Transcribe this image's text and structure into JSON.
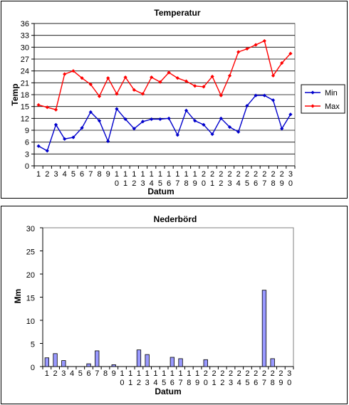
{
  "chart_data": [
    {
      "type": "line",
      "title": "Temperatur",
      "xlabel": "Datum",
      "ylabel": "Temp",
      "ylim": [
        0,
        36
      ],
      "yticks": [
        0,
        3,
        6,
        9,
        12,
        15,
        18,
        21,
        24,
        27,
        30,
        33,
        36
      ],
      "grid": true,
      "legend_position": "right",
      "categories": [
        "1",
        "2",
        "3",
        "4",
        "5",
        "6",
        "7",
        "8",
        "9",
        "10",
        "11",
        "12",
        "13",
        "14",
        "15",
        "16",
        "17",
        "18",
        "19",
        "20",
        "21",
        "22",
        "23",
        "24",
        "25",
        "26",
        "27",
        "28",
        "29",
        "30"
      ],
      "series": [
        {
          "name": "Min",
          "color": "#0000cc",
          "values": [
            5.0,
            3.8,
            10.4,
            6.8,
            7.2,
            9.6,
            13.6,
            11.4,
            6.2,
            14.4,
            11.8,
            9.4,
            11.2,
            11.8,
            11.8,
            12.0,
            7.8,
            14.0,
            11.4,
            10.4,
            8.0,
            12.0,
            9.8,
            8.6,
            15.2,
            17.8,
            17.8,
            16.6,
            9.4,
            13.0
          ]
        },
        {
          "name": "Max",
          "color": "#ff0000",
          "values": [
            15.4,
            14.8,
            14.2,
            23.2,
            24.0,
            22.2,
            20.6,
            17.6,
            22.2,
            18.2,
            22.4,
            19.2,
            18.2,
            22.4,
            21.2,
            23.6,
            22.2,
            21.4,
            20.2,
            20.0,
            22.6,
            17.8,
            22.8,
            28.8,
            29.6,
            30.6,
            31.6,
            22.8,
            26.0,
            28.4
          ]
        }
      ]
    },
    {
      "type": "bar",
      "title": "Nederbörd",
      "xlabel": "Datum",
      "ylabel": "Mm",
      "ylim": [
        0,
        30
      ],
      "yticks": [
        0,
        5,
        10,
        15,
        20,
        25,
        30
      ],
      "grid": false,
      "bar_color": "#9999ff",
      "categories": [
        "1",
        "2",
        "3",
        "4",
        "5",
        "6",
        "7",
        "8",
        "9",
        "10",
        "11",
        "12",
        "13",
        "14",
        "15",
        "16",
        "17",
        "18",
        "19",
        "20",
        "21",
        "22",
        "23",
        "24",
        "25",
        "26",
        "27",
        "28",
        "29",
        "30"
      ],
      "values": [
        1.9,
        2.8,
        1.3,
        0,
        0,
        0.6,
        3.4,
        0,
        0.4,
        0,
        0,
        3.6,
        2.6,
        0,
        0,
        2.0,
        1.7,
        0,
        0,
        1.5,
        0,
        0,
        0,
        0,
        0,
        0,
        16.5,
        1.7,
        0,
        0
      ]
    }
  ]
}
